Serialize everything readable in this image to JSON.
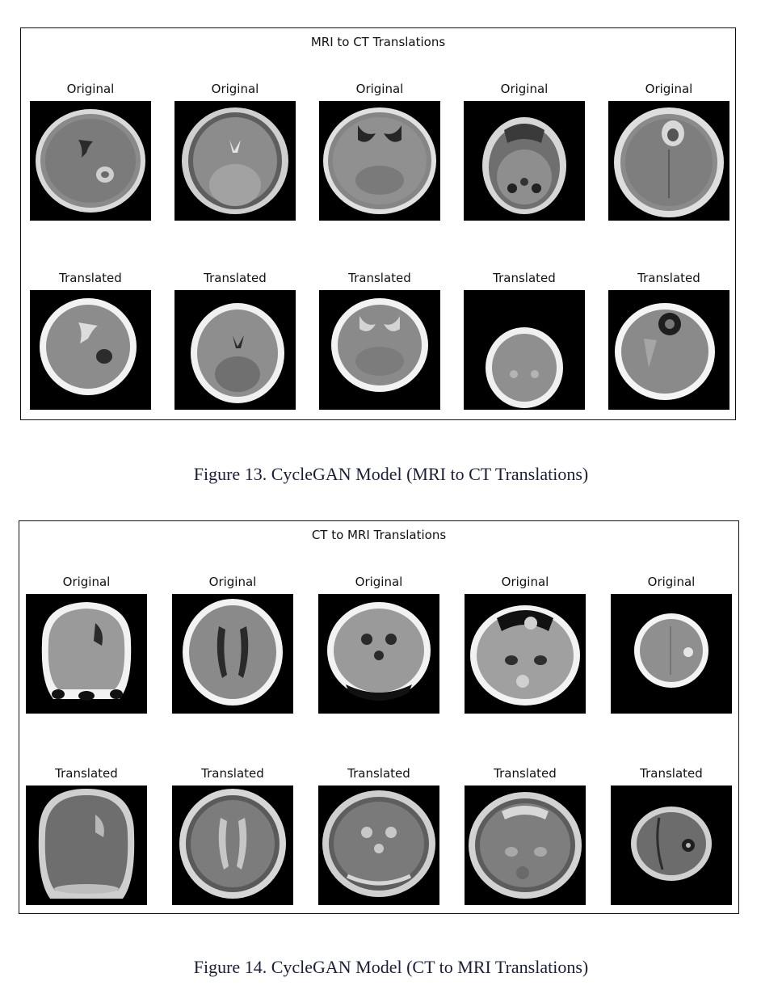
{
  "figure13": {
    "panel_title": "MRI to CT Translations",
    "row1": [
      "Original",
      "Original",
      "Original",
      "Original",
      "Original"
    ],
    "row2": [
      "Translated",
      "Translated",
      "Translated",
      "Translated",
      "Translated"
    ],
    "caption": "Figure 13. CycleGAN Model (MRI to CT Translations)"
  },
  "figure14": {
    "panel_title": "CT to MRI Translations",
    "row1": [
      "Original",
      "Original",
      "Original",
      "Original",
      "Original"
    ],
    "row2": [
      "Translated",
      "Translated",
      "Translated",
      "Translated",
      "Translated"
    ],
    "caption": "Figure 14. CycleGAN Model (CT to MRI Translations)"
  },
  "colors": {
    "caption_text": "#1a1f3a",
    "frame": "#111111"
  }
}
